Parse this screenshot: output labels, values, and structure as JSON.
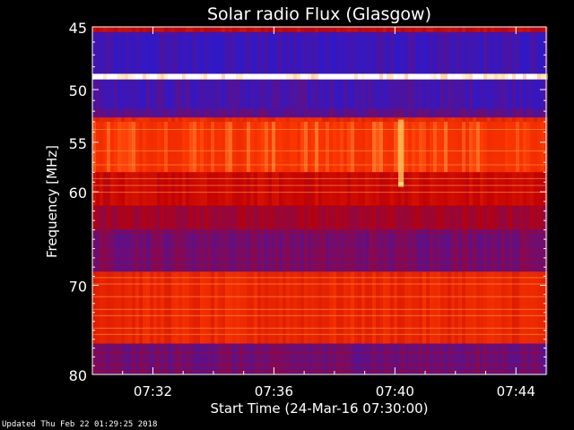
{
  "chart_data": {
    "type": "heatmap",
    "title": "Solar radio Flux (Glasgow)",
    "xlabel": "Start Time (24-Mar-16 07:30:00)",
    "ylabel": "Frequency [MHz]",
    "x_ticks": [
      "07:32",
      "07:36",
      "07:40",
      "07:44"
    ],
    "x_tick_minutes": [
      2,
      6,
      10,
      14
    ],
    "xlim_minutes": [
      0,
      15
    ],
    "y_ticks": [
      45,
      50,
      55,
      60,
      70,
      80
    ],
    "ylim": [
      45,
      80
    ],
    "colors": {
      "background": "#000000",
      "low": "#2a1ad0",
      "mid": "#c00000",
      "high": "#ff3a00",
      "peak": "#ffe070",
      "interference": "#ffffff"
    },
    "bands": [
      {
        "from": 45.0,
        "to": 45.3,
        "level": 0.5
      },
      {
        "from": 45.3,
        "to": 48.6,
        "level": 0.05
      },
      {
        "from": 48.6,
        "to": 49.1,
        "level": 1.0
      },
      {
        "from": 49.1,
        "to": 51.8,
        "level": 0.08
      },
      {
        "from": 51.8,
        "to": 52.6,
        "level": 0.15
      },
      {
        "from": 52.6,
        "to": 53.0,
        "level": 0.7
      },
      {
        "from": 53.0,
        "to": 58.0,
        "level": 0.78
      },
      {
        "from": 58.0,
        "to": 61.5,
        "level": 0.5
      },
      {
        "from": 61.5,
        "to": 64.0,
        "level": 0.35
      },
      {
        "from": 64.0,
        "to": 68.5,
        "level": 0.22
      },
      {
        "from": 68.5,
        "to": 76.5,
        "level": 0.68
      },
      {
        "from": 76.5,
        "to": 80.0,
        "level": 0.2
      }
    ],
    "event_minutes": [
      10.2
    ],
    "footer": "Updated Thu Feb 22 01:29:25 2018"
  }
}
